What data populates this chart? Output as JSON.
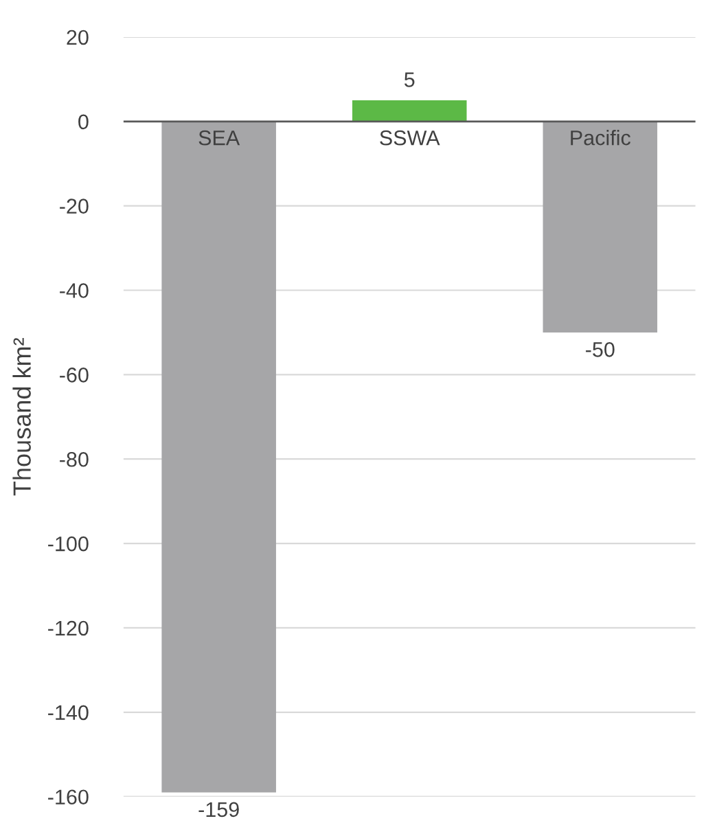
{
  "chart_data": {
    "type": "bar",
    "ylabel": "Thousand km²",
    "categories": [
      "SEA",
      "SSWA",
      "Pacific"
    ],
    "values": [
      -159,
      5,
      -50
    ],
    "colors": [
      "#a6a6a8",
      "#5cb946",
      "#a6a6a8"
    ],
    "ylim": [
      -160,
      20
    ],
    "yticks": [
      -160,
      -140,
      -120,
      -100,
      -80,
      -60,
      -40,
      -20,
      0,
      20
    ],
    "grid": "y",
    "data_labels": true
  }
}
